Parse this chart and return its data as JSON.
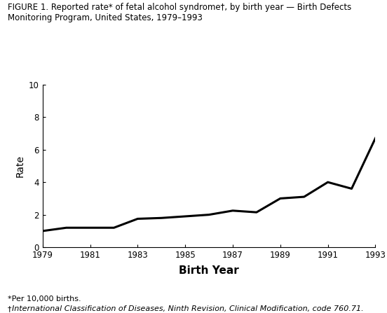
{
  "years": [
    1979,
    1980,
    1981,
    1982,
    1983,
    1984,
    1985,
    1986,
    1987,
    1988,
    1989,
    1990,
    1991,
    1992,
    1993
  ],
  "rates": [
    1.0,
    1.2,
    1.2,
    1.2,
    1.75,
    1.8,
    1.9,
    2.0,
    2.25,
    2.15,
    3.0,
    3.1,
    4.0,
    3.6,
    6.7
  ],
  "xlim": [
    1979,
    1993
  ],
  "ylim": [
    0,
    10
  ],
  "xticks": [
    1979,
    1981,
    1983,
    1985,
    1987,
    1989,
    1991,
    1993
  ],
  "yticks": [
    0,
    2,
    4,
    6,
    8,
    10
  ],
  "xlabel": "Birth Year",
  "ylabel": "Rate",
  "title_line1": "FIGURE 1. Reported rate* of fetal alcohol syndrome†, by birth year — Birth Defects",
  "title_line2": "Monitoring Program, United States, 1979–1993",
  "footnote1": "*Per 10,000 births.",
  "footnote2_prefix": "†",
  "footnote2_italic": "International Classification of Diseases, Ninth Revision, Clinical Modification,",
  "footnote2_suffix": " code 760.71.",
  "line_color": "#000000",
  "line_width": 2.2,
  "bg_color": "#ffffff",
  "title_fontsize": 8.5,
  "axis_ylabel_fontsize": 10,
  "tick_fontsize": 8.5,
  "footnote_fontsize": 8.0,
  "xlabel_fontsize": 11
}
